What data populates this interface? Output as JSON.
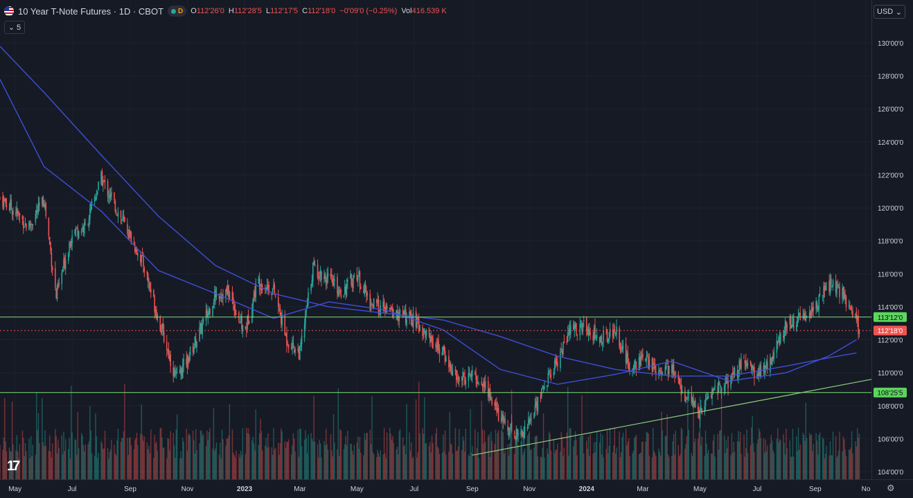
{
  "legend": {
    "title": "10 Year T-Note Futures · 1D · CBOT",
    "interval_badge": "D",
    "open_label": "O",
    "open": "112'26'0",
    "high_label": "H",
    "high": "112'28'5",
    "low_label": "L",
    "low": "112'17'5",
    "close_label": "C",
    "close": "112'18'0",
    "change": "−0'09'0 (−0.25%)",
    "vol_label": "Vol",
    "vol": "416.539 K",
    "collapse_count": "5"
  },
  "price_scale": {
    "currency": "USD",
    "ticks": [
      "130'00'0",
      "128'00'0",
      "126'00'0",
      "124'00'0",
      "122'00'0",
      "120'00'0",
      "118'00'0",
      "116'00'0",
      "114'00'0",
      "112'00'0",
      "110'00'0",
      "108'00'0",
      "106'00'0",
      "104'00'0"
    ]
  },
  "time_scale": {
    "labels": [
      "May",
      "Jul",
      "Sep",
      "Nov",
      "2023",
      "Mar",
      "May",
      "Jul",
      "Sep",
      "Nov",
      "2024",
      "Mar",
      "May",
      "Jul",
      "Sep",
      "No"
    ]
  },
  "colors": {
    "background": "#161a25",
    "up": "#26a69a",
    "down": "#ef5350",
    "ma": "#3f4fd6",
    "hline": "#7ee07a",
    "trend": "#8fd07f"
  },
  "chart_data": {
    "type": "candlestick",
    "symbol": "10 Year T-Note Futures",
    "interval": "1D",
    "exchange": "CBOT",
    "x_range": [
      "2022-04-15",
      "2024-10-31"
    ],
    "ylim": [
      104,
      131
    ],
    "last_price": "112'18'0",
    "horizontal_levels": [
      {
        "label": "113'12'0",
        "value": 113.375
      },
      {
        "label": "108'25'5",
        "value": 108.8
      }
    ],
    "trendline": {
      "from": {
        "date": "2023-09-01",
        "value": 105.0
      },
      "to": {
        "date": "2024-10-31",
        "value": 109.6
      }
    },
    "moving_averages": [
      {
        "points": [
          [
            "2022-04-15",
            129.8
          ],
          [
            "2022-06-01",
            127.0
          ],
          [
            "2022-08-01",
            123.2
          ],
          [
            "2022-10-01",
            119.5
          ],
          [
            "2022-12-01",
            116.5
          ],
          [
            "2023-02-01",
            114.8
          ],
          [
            "2023-04-01",
            114.0
          ],
          [
            "2023-06-01",
            113.6
          ],
          [
            "2023-08-01",
            113.2
          ],
          [
            "2023-10-01",
            112.2
          ],
          [
            "2023-12-01",
            111.0
          ],
          [
            "2024-02-01",
            110.2
          ],
          [
            "2024-04-01",
            109.8
          ],
          [
            "2024-06-01",
            109.8
          ],
          [
            "2024-08-01",
            110.4
          ],
          [
            "2024-09-15",
            110.9
          ],
          [
            "2024-10-15",
            111.2
          ]
        ]
      },
      {
        "points": [
          [
            "2022-04-15",
            127.8
          ],
          [
            "2022-06-01",
            122.5
          ],
          [
            "2022-08-01",
            119.8
          ],
          [
            "2022-10-01",
            116.2
          ],
          [
            "2022-12-01",
            114.8
          ],
          [
            "2023-02-01",
            113.3
          ],
          [
            "2023-04-01",
            114.3
          ],
          [
            "2023-06-01",
            113.8
          ],
          [
            "2023-08-01",
            112.6
          ],
          [
            "2023-10-01",
            110.2
          ],
          [
            "2023-12-01",
            109.3
          ],
          [
            "2024-02-01",
            109.9
          ],
          [
            "2024-04-01",
            110.7
          ],
          [
            "2024-06-01",
            109.5
          ],
          [
            "2024-08-01",
            110.0
          ],
          [
            "2024-09-15",
            111.0
          ],
          [
            "2024-10-15",
            112.0
          ]
        ]
      }
    ],
    "close_series": [
      [
        "2022-04-15",
        120.6
      ],
      [
        "2022-05-01",
        119.8
      ],
      [
        "2022-05-15",
        118.8
      ],
      [
        "2022-06-01",
        120.5
      ],
      [
        "2022-06-14",
        114.6
      ],
      [
        "2022-07-01",
        118.6
      ],
      [
        "2022-07-15",
        118.8
      ],
      [
        "2022-08-01",
        121.8
      ],
      [
        "2022-08-15",
        120.2
      ],
      [
        "2022-09-01",
        118.3
      ],
      [
        "2022-09-15",
        116.6
      ],
      [
        "2022-10-01",
        113.3
      ],
      [
        "2022-10-20",
        109.6
      ],
      [
        "2022-11-01",
        110.8
      ],
      [
        "2022-11-15",
        112.6
      ],
      [
        "2022-12-01",
        114.8
      ],
      [
        "2022-12-15",
        114.9
      ],
      [
        "2023-01-01",
        112.4
      ],
      [
        "2023-01-15",
        115.6
      ],
      [
        "2023-02-01",
        115.0
      ],
      [
        "2023-02-15",
        112.0
      ],
      [
        "2023-03-01",
        111.2
      ],
      [
        "2023-03-15",
        116.4
      ],
      [
        "2023-04-01",
        115.6
      ],
      [
        "2023-04-15",
        114.9
      ],
      [
        "2023-05-01",
        116.0
      ],
      [
        "2023-05-15",
        114.2
      ],
      [
        "2023-06-01",
        113.8
      ],
      [
        "2023-06-15",
        113.5
      ],
      [
        "2023-07-01",
        113.2
      ],
      [
        "2023-07-15",
        112.3
      ],
      [
        "2023-08-01",
        111.2
      ],
      [
        "2023-08-15",
        109.6
      ],
      [
        "2023-09-01",
        109.8
      ],
      [
        "2023-09-15",
        109.2
      ],
      [
        "2023-10-01",
        107.2
      ],
      [
        "2023-10-20",
        106.2
      ],
      [
        "2023-11-01",
        107.0
      ],
      [
        "2023-11-15",
        109.0
      ],
      [
        "2023-12-01",
        110.8
      ],
      [
        "2023-12-15",
        112.6
      ],
      [
        "2024-01-01",
        112.8
      ],
      [
        "2024-01-15",
        112.0
      ],
      [
        "2024-02-01",
        112.6
      ],
      [
        "2024-02-15",
        110.4
      ],
      [
        "2024-03-01",
        110.8
      ],
      [
        "2024-03-15",
        110.3
      ],
      [
        "2024-04-01",
        110.2
      ],
      [
        "2024-04-15",
        108.6
      ],
      [
        "2024-05-01",
        107.6
      ],
      [
        "2024-05-15",
        109.0
      ],
      [
        "2024-06-01",
        109.3
      ],
      [
        "2024-06-15",
        110.6
      ],
      [
        "2024-07-01",
        109.9
      ],
      [
        "2024-07-15",
        110.6
      ],
      [
        "2024-08-01",
        113.0
      ],
      [
        "2024-08-15",
        113.2
      ],
      [
        "2024-09-01",
        114.0
      ],
      [
        "2024-09-15",
        115.4
      ],
      [
        "2024-10-01",
        114.7
      ],
      [
        "2024-10-15",
        113.2
      ],
      [
        "2024-10-18",
        112.56
      ]
    ]
  }
}
